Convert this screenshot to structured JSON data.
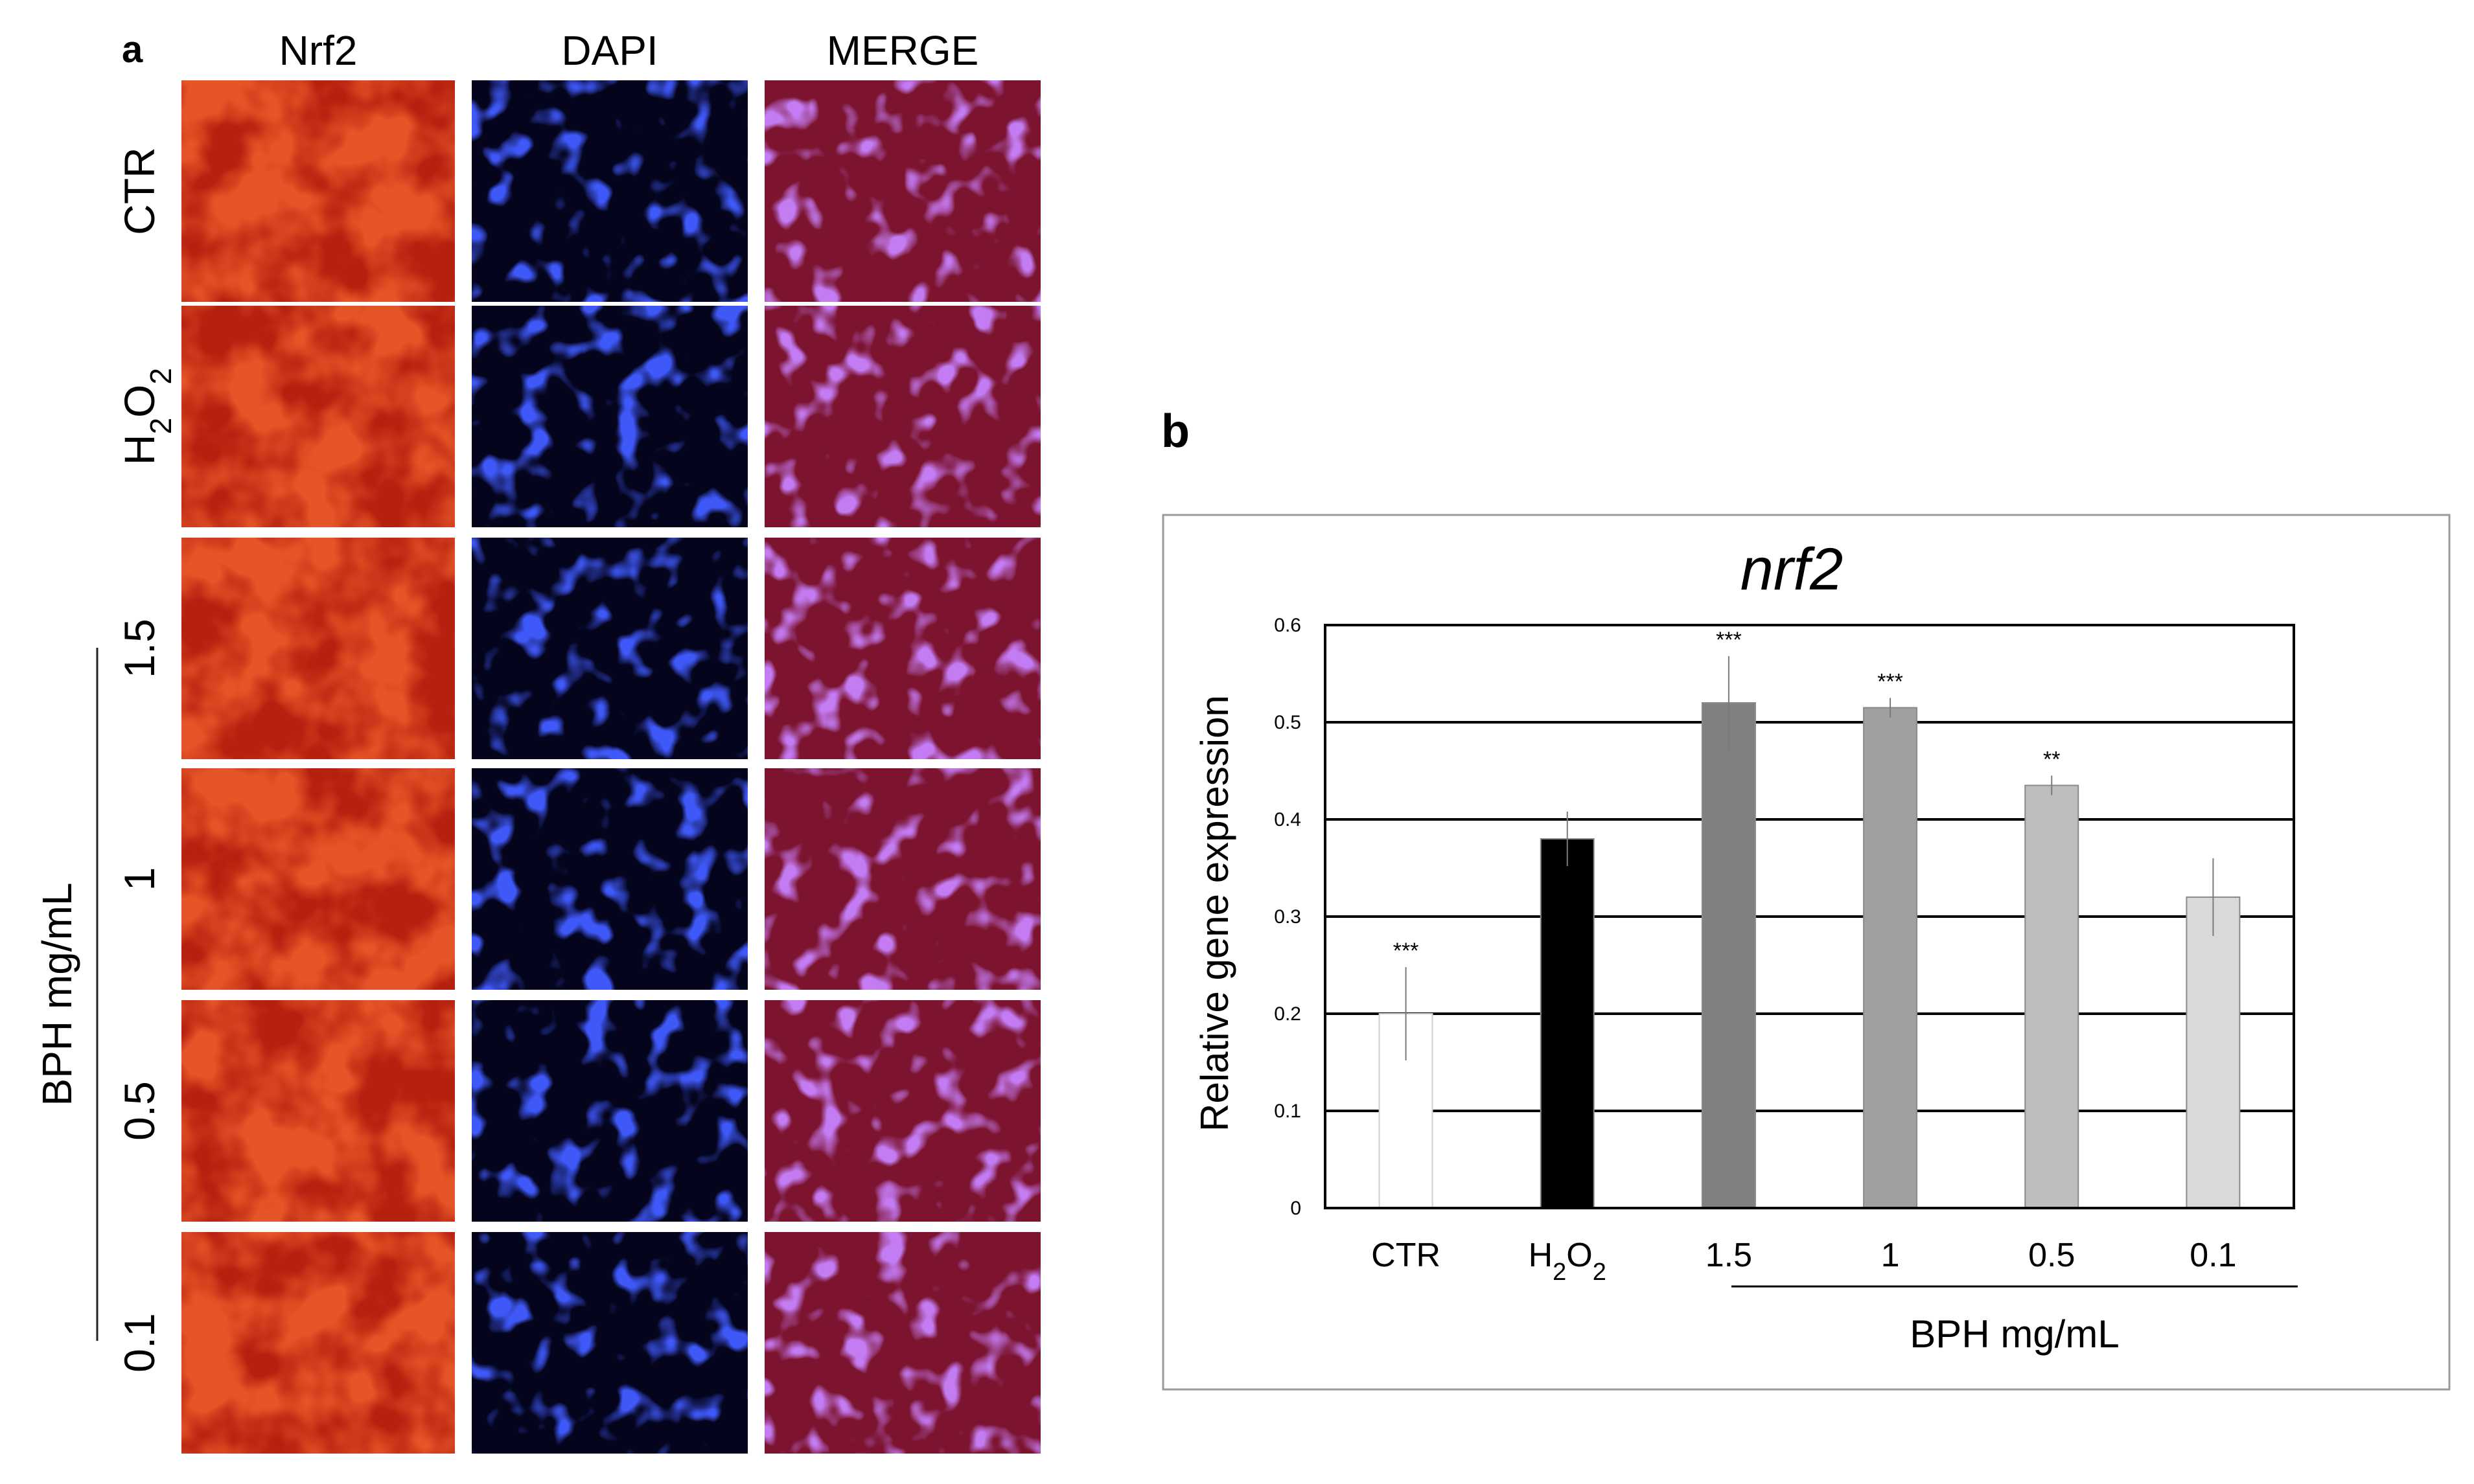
{
  "panel_a": {
    "label": "a",
    "columns": [
      "Nrf2",
      "DAPI",
      "MERGE"
    ],
    "rows": [
      "CTR",
      "H2O2",
      "1.5",
      "1",
      "0.5",
      "0.1"
    ],
    "group_label": "BPH mg/mL"
  },
  "panel_b": {
    "label": "b",
    "group_label": "BPH mg/mL"
  },
  "chart_data": {
    "type": "bar",
    "title": "nrf2",
    "ylabel": "Relative gene expression",
    "xlabel": "",
    "categories": [
      "CTR",
      "H2O2",
      "1.5",
      "1",
      "0.5",
      "0.1"
    ],
    "values": [
      0.2,
      0.38,
      0.52,
      0.515,
      0.435,
      0.32
    ],
    "errors": [
      0.048,
      0.028,
      0.048,
      0.01,
      0.01,
      0.04
    ],
    "significance": [
      "***",
      "",
      "***",
      "***",
      "**",
      ""
    ],
    "bar_colors": [
      "#ffffff",
      "#000000",
      "#808080",
      "#a0a0a0",
      "#bdbdbd",
      "#d9d9d9"
    ],
    "ylim": [
      0,
      0.6
    ],
    "yticks": [
      "0",
      "0.1",
      "0.2",
      "0.3",
      "0.4",
      "0.5",
      "0.6"
    ],
    "grid": true,
    "legend": "none"
  }
}
